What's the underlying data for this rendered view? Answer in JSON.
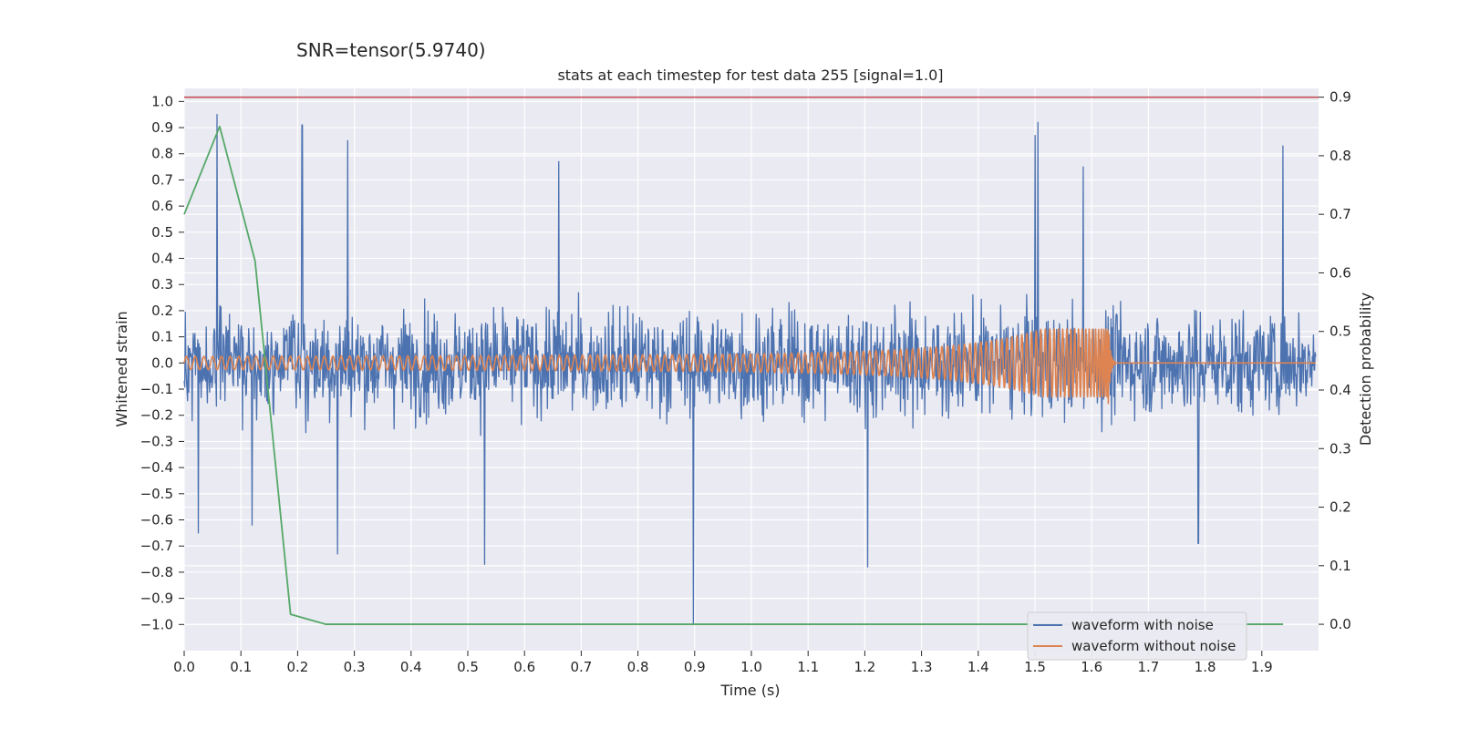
{
  "chart_data": {
    "type": "line",
    "suptitle": "SNR=tensor(5.9740)",
    "title": "stats at each timestep for test data 255 [signal=1.0]",
    "xlabel": "Time (s)",
    "ylabel": "Whitened strain",
    "ylabel_right": "Detection probability",
    "xlim": [
      0.0,
      2.0
    ],
    "ylim": [
      -1.1,
      1.05
    ],
    "ylim_right": [
      -0.045,
      0.915
    ],
    "x_ticks": [
      "0.0",
      "0.1",
      "0.2",
      "0.3",
      "0.4",
      "0.5",
      "0.6",
      "0.7",
      "0.8",
      "0.9",
      "1.0",
      "1.1",
      "1.2",
      "1.3",
      "1.4",
      "1.5",
      "1.6",
      "1.7",
      "1.8",
      "1.9"
    ],
    "y_ticks": [
      "1.0",
      "0.9",
      "0.8",
      "0.7",
      "0.6",
      "0.5",
      "0.4",
      "0.3",
      "0.2",
      "0.1",
      "0.0",
      "−0.1",
      "−0.2",
      "−0.3",
      "−0.4",
      "−0.5",
      "−0.6",
      "−0.7",
      "−0.8",
      "−0.9",
      "−1.0"
    ],
    "y_right_ticks": [
      "0.9",
      "0.8",
      "0.7",
      "0.6",
      "0.5",
      "0.4",
      "0.3",
      "0.2",
      "0.1",
      "0.0"
    ],
    "threshold": {
      "value": 0.9,
      "axis": "right",
      "color": "#c44e52"
    },
    "series": [
      {
        "name": "waveform with noise",
        "color": "#4c72b0",
        "axis": "left",
        "kind": "noise",
        "spikes": [
          {
            "x": 0.058,
            "y": 0.95
          },
          {
            "x": 0.208,
            "y": 0.91
          },
          {
            "x": 0.288,
            "y": 0.85
          },
          {
            "x": 0.898,
            "y": -1.0
          },
          {
            "x": 0.53,
            "y": -0.77
          },
          {
            "x": 1.205,
            "y": -0.78
          },
          {
            "x": 1.505,
            "y": 0.92
          },
          {
            "x": 1.5,
            "y": 0.87
          },
          {
            "x": 1.937,
            "y": 0.83
          },
          {
            "x": 0.27,
            "y": -0.73
          },
          {
            "x": 0.025,
            "y": -0.65
          },
          {
            "x": 0.66,
            "y": 0.77
          },
          {
            "x": 1.788,
            "y": -0.69
          },
          {
            "x": 1.585,
            "y": 0.75
          },
          {
            "x": 0.12,
            "y": -0.62
          }
        ]
      },
      {
        "name": "waveform without noise",
        "color": "#dd8452",
        "axis": "left",
        "kind": "chirp",
        "merger_time": 1.63,
        "start_amplitude": 0.025,
        "peak_amplitude": 0.13
      },
      {
        "name": "detection probability",
        "color": "#55a868",
        "axis": "right",
        "kind": "line",
        "x": [
          0.0,
          0.0625,
          0.125,
          0.1875,
          0.25,
          0.3125,
          0.375,
          0.4375,
          0.5,
          0.5625,
          0.625,
          0.6875,
          0.75,
          0.8125,
          0.875,
          0.9375,
          1.0,
          1.0625,
          1.125,
          1.1875,
          1.25,
          1.3125,
          1.375,
          1.4375,
          1.5,
          1.5625,
          1.625,
          1.6875,
          1.75,
          1.8125,
          1.875,
          1.9375
        ],
        "y": [
          0.7,
          0.85,
          0.62,
          0.017,
          0.0,
          0.0,
          0.0,
          0.0,
          0.0,
          0.0,
          0.0,
          0.0,
          0.0,
          0.0,
          0.0,
          0.0,
          0.0,
          0.0,
          0.0,
          0.0,
          0.0,
          0.0,
          0.0,
          0.0,
          0.0,
          0.0,
          0.0,
          0.0,
          0.0,
          0.0,
          0.0,
          0.0
        ]
      }
    ],
    "legend": {
      "placement": "lower-right",
      "entries": [
        "waveform with noise",
        "waveform without noise"
      ]
    },
    "style": {
      "background": "#eaeaf2",
      "grid": true,
      "grid_color": "#ffffff"
    }
  }
}
